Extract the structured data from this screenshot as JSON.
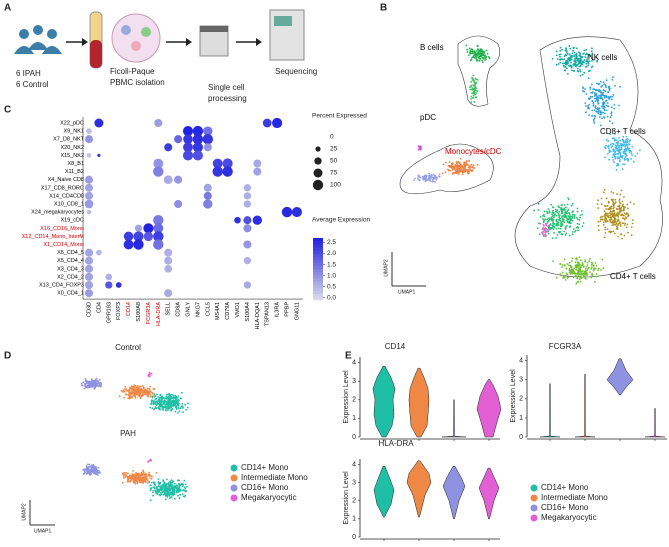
{
  "panel_labels": [
    "A",
    "B",
    "C",
    "D",
    "E"
  ],
  "panel_a": {
    "groups": [
      "6 IPAH",
      "6 Control"
    ],
    "steps": [
      "Ficoll-Paque",
      "PBMC isolation",
      "Single cell",
      "processing",
      "Sequencing"
    ]
  },
  "panel_b": {
    "clusters": [
      {
        "name": "B cells",
        "color": "#000000"
      },
      {
        "name": "NK cells",
        "color": "#000000"
      },
      {
        "name": "pDC",
        "color": "#000000"
      },
      {
        "name": "CD8+ T cells",
        "color": "#000000"
      },
      {
        "name": "Monocytes/cDC",
        "color": "#d40000"
      },
      {
        "name": "CD4+ T cells",
        "color": "#000000"
      }
    ],
    "x_label": "UMAP1",
    "y_label": "UMAP2"
  },
  "panel_c": {
    "type": "dot",
    "rows": [
      "X22_pDC",
      "X9_NK1",
      "X7_D8_NKT",
      "X20_NK2",
      "X15_NK2",
      "X8_B1",
      "X11_B2",
      "X4_Naive CD8",
      "X17_CD8_RORC",
      "X14_CD4CD8",
      "X10_CD8_1",
      "X24_megakaryocytes",
      "X19_cDC",
      "X16_CD16_Mono",
      "X12_CD14_Mono_InterM",
      "X1_CD14_Mono",
      "X6_CD4_5",
      "X5_CD4_4",
      "X3_CD4_3",
      "X2_CD4_2",
      "X13_CD4_FOXP3",
      "X0_CD4_1"
    ],
    "row_colors": [
      "#000",
      "#000",
      "#000",
      "#000",
      "#000",
      "#000",
      "#000",
      "#000",
      "#000",
      "#000",
      "#000",
      "#000",
      "#000",
      "#d40000",
      "#d40000",
      "#d40000",
      "#000",
      "#000",
      "#000",
      "#000",
      "#000",
      "#000"
    ],
    "columns": [
      "CD3D",
      "CD4",
      "GPR183",
      "FOXP3",
      "CD14",
      "S100A8",
      "FCGR3A",
      "HLA-DRA",
      "SELL",
      "CD8A",
      "GNLY",
      "NKG7",
      "CCL5",
      "MS4A1",
      "CD79A",
      "VMO1",
      "S100A4",
      "HLA-DQA1",
      "TSPAN13",
      "IL3RA",
      "PPBP",
      "GNG11"
    ],
    "column_colors": [
      "#000",
      "#000",
      "#000",
      "#000",
      "#d40000",
      "#000",
      "#d40000",
      "#d40000",
      "#000",
      "#000",
      "#000",
      "#000",
      "#000",
      "#000",
      "#000",
      "#000",
      "#000",
      "#000",
      "#000",
      "#000",
      "#000",
      "#000"
    ],
    "dots": [
      {
        "row": 0,
        "col": 1,
        "pct": 75,
        "avg": 2.4
      },
      {
        "row": 0,
        "col": 7,
        "pct": 60,
        "avg": 0.8
      },
      {
        "row": 0,
        "col": 18,
        "pct": 70,
        "avg": 2.2
      },
      {
        "row": 0,
        "col": 19,
        "pct": 95,
        "avg": 2.5
      },
      {
        "row": 1,
        "col": 10,
        "pct": 95,
        "avg": 2.6
      },
      {
        "row": 1,
        "col": 11,
        "pct": 100,
        "avg": 2.5
      },
      {
        "row": 1,
        "col": 12,
        "pct": 80,
        "avg": 1.4
      },
      {
        "row": 1,
        "col": 0,
        "pct": 30,
        "avg": 0.3
      },
      {
        "row": 2,
        "col": 0,
        "pct": 60,
        "avg": 0.9
      },
      {
        "row": 2,
        "col": 9,
        "pct": 60,
        "avg": 1.6
      },
      {
        "row": 2,
        "col": 10,
        "pct": 85,
        "avg": 2.3
      },
      {
        "row": 2,
        "col": 11,
        "pct": 100,
        "avg": 2.4
      },
      {
        "row": 2,
        "col": 12,
        "pct": 100,
        "avg": 2.3
      },
      {
        "row": 3,
        "col": 8,
        "pct": 60,
        "avg": 2.2
      },
      {
        "row": 3,
        "col": 10,
        "pct": 90,
        "avg": 2.2
      },
      {
        "row": 3,
        "col": 11,
        "pct": 95,
        "avg": 2.3
      },
      {
        "row": 3,
        "col": 12,
        "pct": 60,
        "avg": 0.9
      },
      {
        "row": 4,
        "col": 10,
        "pct": 95,
        "avg": 2.0
      },
      {
        "row": 4,
        "col": 11,
        "pct": 95,
        "avg": 1.9
      },
      {
        "row": 4,
        "col": 0,
        "pct": 20,
        "avg": 0.2
      },
      {
        "row": 4,
        "col": 1,
        "pct": 10,
        "avg": 2.2
      },
      {
        "row": 5,
        "col": 7,
        "pct": 90,
        "avg": 0.9
      },
      {
        "row": 5,
        "col": 13,
        "pct": 90,
        "avg": 2.1
      },
      {
        "row": 5,
        "col": 14,
        "pct": 95,
        "avg": 2.0
      },
      {
        "row": 5,
        "col": 17,
        "pct": 60,
        "avg": 0.6
      },
      {
        "row": 6,
        "col": 7,
        "pct": 100,
        "avg": 1.2
      },
      {
        "row": 6,
        "col": 13,
        "pct": 100,
        "avg": 2.3
      },
      {
        "row": 6,
        "col": 14,
        "pct": 100,
        "avg": 2.4
      },
      {
        "row": 6,
        "col": 17,
        "pct": 60,
        "avg": 0.7
      },
      {
        "row": 7,
        "col": 0,
        "pct": 60,
        "avg": 0.8
      },
      {
        "row": 7,
        "col": 8,
        "pct": 70,
        "avg": 0.6
      },
      {
        "row": 7,
        "col": 9,
        "pct": 60,
        "avg": 0.9
      },
      {
        "row": 8,
        "col": 0,
        "pct": 60,
        "avg": 0.7
      },
      {
        "row": 8,
        "col": 12,
        "pct": 60,
        "avg": 0.7
      },
      {
        "row": 8,
        "col": 16,
        "pct": 50,
        "avg": 0.5
      },
      {
        "row": 9,
        "col": 0,
        "pct": 60,
        "avg": 0.7
      },
      {
        "row": 9,
        "col": 12,
        "pct": 60,
        "avg": 1.3
      },
      {
        "row": 9,
        "col": 16,
        "pct": 50,
        "avg": 0.5
      },
      {
        "row": 10,
        "col": 0,
        "pct": 70,
        "avg": 0.8
      },
      {
        "row": 10,
        "col": 9,
        "pct": 60,
        "avg": 1.0
      },
      {
        "row": 10,
        "col": 12,
        "pct": 80,
        "avg": 1.2
      },
      {
        "row": 10,
        "col": 16,
        "pct": 50,
        "avg": 0.5
      },
      {
        "row": 11,
        "col": 20,
        "pct": 100,
        "avg": 2.5
      },
      {
        "row": 11,
        "col": 21,
        "pct": 95,
        "avg": 2.4
      },
      {
        "row": 11,
        "col": 0,
        "pct": 20,
        "avg": 0.3
      },
      {
        "row": 12,
        "col": 7,
        "pct": 100,
        "avg": 1.3
      },
      {
        "row": 12,
        "col": 15,
        "pct": 40,
        "avg": 2.4
      },
      {
        "row": 12,
        "col": 16,
        "pct": 60,
        "avg": 1.9
      },
      {
        "row": 12,
        "col": 17,
        "pct": 80,
        "avg": 2.4
      },
      {
        "row": 13,
        "col": 5,
        "pct": 50,
        "avg": 0.7
      },
      {
        "row": 13,
        "col": 6,
        "pct": 95,
        "avg": 2.6
      },
      {
        "row": 13,
        "col": 7,
        "pct": 90,
        "avg": 1.5
      },
      {
        "row": 13,
        "col": 16,
        "pct": 60,
        "avg": 1.0
      },
      {
        "row": 14,
        "col": 4,
        "pct": 85,
        "avg": 2.2
      },
      {
        "row": 14,
        "col": 5,
        "pct": 95,
        "avg": 2.1
      },
      {
        "row": 14,
        "col": 6,
        "pct": 80,
        "avg": 1.8
      },
      {
        "row": 14,
        "col": 7,
        "pct": 100,
        "avg": 2.2
      },
      {
        "row": 15,
        "col": 4,
        "pct": 90,
        "avg": 2.4
      },
      {
        "row": 15,
        "col": 5,
        "pct": 100,
        "avg": 2.5
      },
      {
        "row": 15,
        "col": 7,
        "pct": 100,
        "avg": 1.4
      },
      {
        "row": 15,
        "col": 16,
        "pct": 60,
        "avg": 0.9
      },
      {
        "row": 16,
        "col": 0,
        "pct": 60,
        "avg": 0.7
      },
      {
        "row": 16,
        "col": 1,
        "pct": 30,
        "avg": 0.4
      },
      {
        "row": 16,
        "col": 8,
        "pct": 60,
        "avg": 0.5
      },
      {
        "row": 17,
        "col": 0,
        "pct": 60,
        "avg": 0.7
      },
      {
        "row": 17,
        "col": 8,
        "pct": 60,
        "avg": 0.5
      },
      {
        "row": 17,
        "col": 16,
        "pct": 50,
        "avg": 0.5
      },
      {
        "row": 18,
        "col": 0,
        "pct": 60,
        "avg": 0.7
      },
      {
        "row": 18,
        "col": 8,
        "pct": 55,
        "avg": 0.5
      },
      {
        "row": 19,
        "col": 0,
        "pct": 60,
        "avg": 0.7
      },
      {
        "row": 19,
        "col": 2,
        "pct": 40,
        "avg": 0.5
      },
      {
        "row": 20,
        "col": 0,
        "pct": 60,
        "avg": 0.7
      },
      {
        "row": 20,
        "col": 2,
        "pct": 50,
        "avg": 1.8
      },
      {
        "row": 20,
        "col": 3,
        "pct": 30,
        "avg": 2.4
      },
      {
        "row": 20,
        "col": 16,
        "pct": 50,
        "avg": 0.6
      },
      {
        "row": 21,
        "col": 0,
        "pct": 60,
        "avg": 0.8
      },
      {
        "row": 21,
        "col": 8,
        "pct": 60,
        "avg": 0.6
      }
    ],
    "size_legend": {
      "title": "Percent Expressed",
      "ticks": [
        0,
        25,
        50,
        75,
        100
      ]
    },
    "color_legend": {
      "title": "Average Expression",
      "lim": [
        -0.1,
        2.7
      ],
      "low": "#d8d8e8",
      "high": "#1a1ae0",
      "ticks": [
        {
          "value": 2.5,
          "label": "2.5"
        },
        {
          "value": 2,
          "label": "2.0"
        },
        {
          "value": 1.5,
          "label": "1.5"
        },
        {
          "value": 1,
          "label": "1.0"
        },
        {
          "value": 0.5,
          "label": "0.5"
        },
        {
          "value": 0,
          "label": "0.0"
        }
      ]
    }
  },
  "groups": [
    {
      "name": "CD14+ Mono",
      "color": "#1fbfa5"
    },
    {
      "name": "Intermediate Mono",
      "color": "#ef8845"
    },
    {
      "name": "CD16+ Mono",
      "color": "#8e92e0"
    },
    {
      "name": "Megakaryocytic",
      "color": "#e35fd4"
    }
  ],
  "panel_d": {
    "titles": [
      "Control",
      "PAH"
    ],
    "x_label": "UMAP1",
    "y_label": "UMAP2"
  },
  "panel_e": {
    "genes": [
      "CD14",
      "FCGR3A",
      "HLA-DRA"
    ],
    "y_label": "Expression Level",
    "ylim": [
      0,
      4.3
    ],
    "yticks": [
      0,
      1,
      2,
      3,
      4
    ]
  }
}
